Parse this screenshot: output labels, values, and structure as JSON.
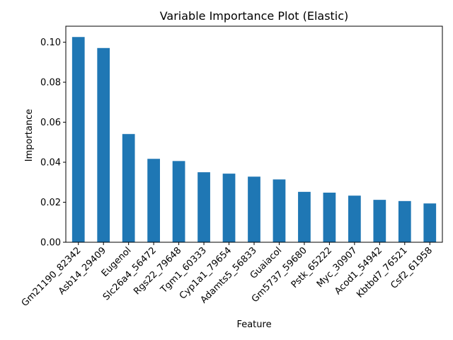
{
  "chart_data": {
    "type": "bar",
    "title": "Variable Importance Plot (Elastic)",
    "xlabel": "Feature",
    "ylabel": "Importance",
    "categories": [
      "Gm21190_82342",
      "Asb14_29409",
      "Eugenol",
      "Slc26a4_56472",
      "Rgs22_79648",
      "Tgm1_60333",
      "Cyp1a1_79654",
      "Adamts5_56833",
      "Guaiacol",
      "Gm5737_59680",
      "Pstk_65222",
      "Myc_30907",
      "Acod1_54942",
      "Kbtbd7_76521",
      "Csf2_61958"
    ],
    "values": [
      0.1026,
      0.0971,
      0.0541,
      0.0417,
      0.0406,
      0.035,
      0.0343,
      0.0328,
      0.0314,
      0.0252,
      0.0248,
      0.0233,
      0.0212,
      0.0206,
      0.0194
    ],
    "ylim": [
      0,
      0.108
    ],
    "yticks": [
      0.0,
      0.02,
      0.04,
      0.06,
      0.08,
      0.1
    ],
    "ytick_labels": [
      "0.00",
      "0.02",
      "0.04",
      "0.06",
      "0.08",
      "0.10"
    ],
    "grid": false,
    "bar_color": "#1f77b4"
  }
}
